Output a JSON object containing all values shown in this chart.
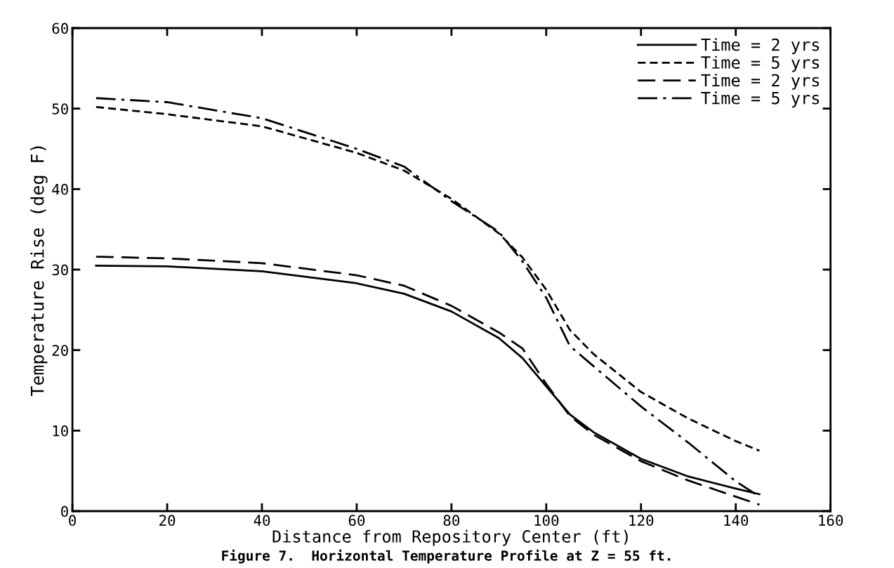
{
  "chart_data": {
    "type": "line",
    "xlabel": "Distance from Repository Center (ft)",
    "ylabel": "Temperature Rise (deg F)",
    "annotations": [
      "Figure 7.  Horizontal Temperature Profile at Z = 55 ft."
    ],
    "xlim": [
      0,
      160
    ],
    "xticks": [
      0,
      20,
      40,
      60,
      80,
      100,
      120,
      140,
      160
    ],
    "ylim": [
      0,
      60
    ],
    "yticks": [
      0,
      10,
      20,
      30,
      40,
      50,
      60
    ],
    "grid": false,
    "legend": "top right",
    "marker": "none",
    "x": [
      5,
      20,
      40,
      60,
      70,
      80,
      90,
      95,
      100,
      105,
      110,
      120,
      130,
      140,
      145
    ],
    "series": [
      {
        "name": "Time = 2 yrs",
        "color": "#000000",
        "line_style": "solid",
        "values": [
          30.5,
          30.4,
          29.8,
          28.3,
          27,
          24.8,
          21.5,
          19,
          15.5,
          12,
          9.8,
          6.5,
          4.3,
          2.8,
          2.1
        ]
      },
      {
        "name": "Time = 5 yrs",
        "color": "#000000",
        "line_style": "dashed",
        "values": [
          50.2,
          49.3,
          47.8,
          44.5,
          42.3,
          38.8,
          34.5,
          31.5,
          27.5,
          22.5,
          19.5,
          14.8,
          11.5,
          8.7,
          7.5
        ]
      },
      {
        "name": "Time = 2 yrs",
        "color": "#000000",
        "line_style": "longdash",
        "values": [
          31.6,
          31.4,
          30.8,
          29.3,
          28,
          25.5,
          22.2,
          20.2,
          15.8,
          11.8,
          9.5,
          6.2,
          3.8,
          1.8,
          0.8
        ]
      },
      {
        "name": "Time = 5 yrs",
        "color": "#000000",
        "line_style": "dashdot",
        "values": [
          51.3,
          50.8,
          48.8,
          45,
          42.8,
          38.5,
          34.7,
          31,
          26.5,
          20.5,
          18,
          13,
          8.5,
          3.7,
          1.8
        ]
      }
    ]
  }
}
